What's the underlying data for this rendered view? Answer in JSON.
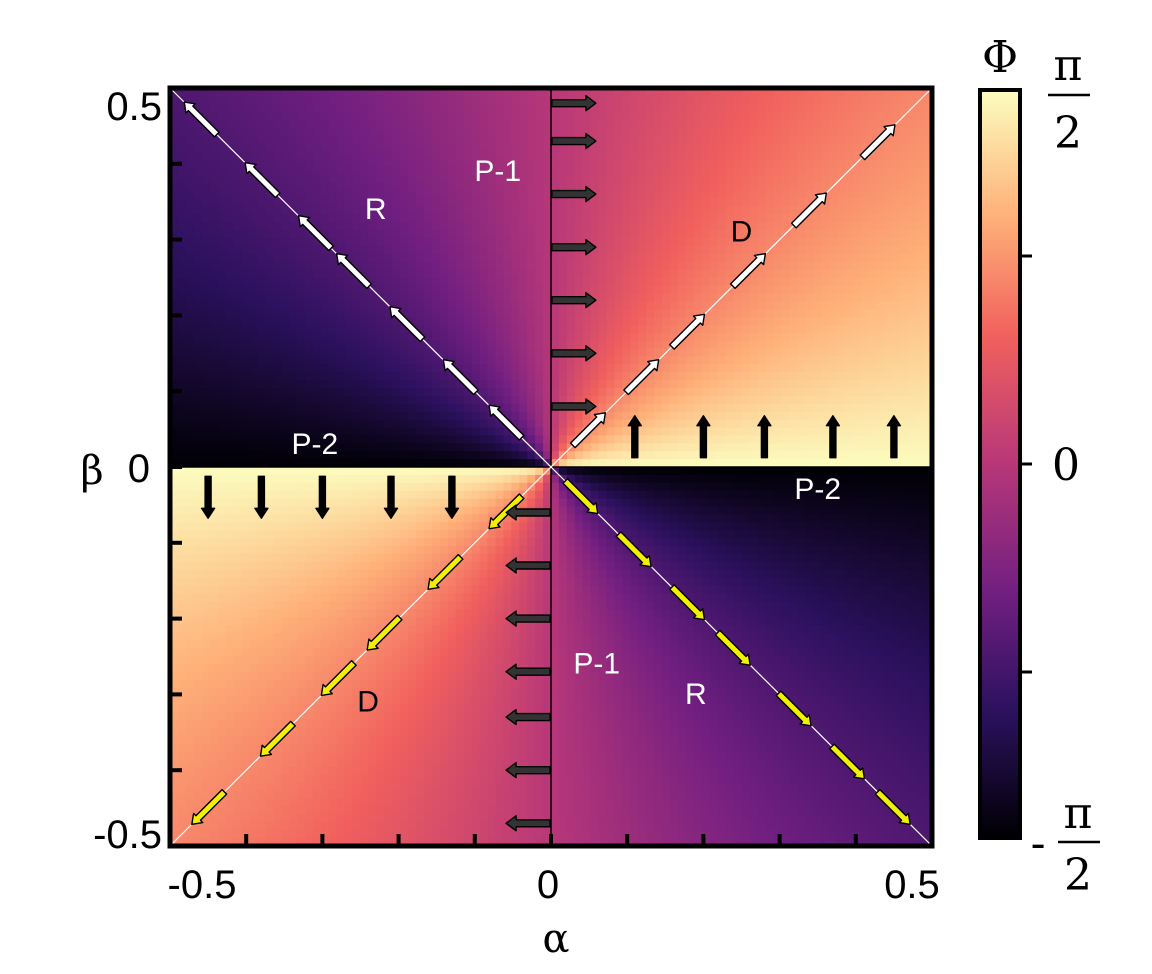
{
  "chart_data": {
    "type": "heatmap",
    "title": "",
    "xlabel": "α",
    "ylabel": "β",
    "xlim": [
      -0.5,
      0.5
    ],
    "ylim": [
      -0.5,
      0.5
    ],
    "x_tick_labels": [
      "-0.5",
      "0",
      "0.5"
    ],
    "y_tick_labels": [
      "0.5",
      "0",
      "-0.5"
    ],
    "colorbar": {
      "label": "Φ",
      "top_label": {
        "numerator": "π",
        "denominator": "2"
      },
      "middle_label": "0",
      "bottom_label": {
        "sign": "-",
        "numerator": "π",
        "denominator": "2"
      },
      "colormap": [
        "#000004",
        "#2c115f",
        "#721f81",
        "#b73779",
        "#f1605d",
        "#feb078",
        "#fcfdbf"
      ]
    },
    "regions": [
      {
        "label": "R",
        "alpha": -0.23,
        "beta": 0.34,
        "color": "#ffffff"
      },
      {
        "label": "P-1",
        "alpha": -0.07,
        "beta": 0.39,
        "color": "#ffffff"
      },
      {
        "label": "D",
        "alpha": 0.25,
        "beta": 0.31,
        "color": "#000000"
      },
      {
        "label": "P-2",
        "alpha": -0.31,
        "beta": 0.03,
        "color": "#ffffff"
      },
      {
        "label": "P-2",
        "alpha": 0.35,
        "beta": -0.03,
        "color": "#ffffff"
      },
      {
        "label": "P-1",
        "alpha": 0.06,
        "beta": -0.26,
        "color": "#ffffff"
      },
      {
        "label": "R",
        "alpha": 0.19,
        "beta": -0.3,
        "color": "#ffffff"
      },
      {
        "label": "D",
        "alpha": -0.24,
        "beta": -0.31,
        "color": "#000000"
      }
    ],
    "arrow_sets": [
      {
        "name": "top-right-diagonal",
        "positions": [
          0.05,
          0.12,
          0.18,
          0.26,
          0.34,
          0.43
        ],
        "direction": [
          1,
          1
        ],
        "fill": "#ffffff",
        "stroke": "#000000"
      },
      {
        "name": "top-left-diagonal",
        "positions": [
          -0.06,
          -0.12,
          -0.19,
          -0.26,
          -0.31,
          -0.38,
          -0.46
        ],
        "direction": [
          -1,
          1
        ],
        "fill": "#ffffff",
        "stroke": "#000000"
      },
      {
        "name": "bottom-left-diagonal",
        "positions": [
          -0.06,
          -0.14,
          -0.22,
          -0.28,
          -0.36,
          -0.45
        ],
        "direction": [
          -1,
          -1
        ],
        "fill": "#f2ef00",
        "stroke": "#000000"
      },
      {
        "name": "bottom-right-diagonal",
        "positions": [
          0.04,
          0.11,
          0.18,
          0.24,
          0.32,
          0.39,
          0.45
        ],
        "direction": [
          1,
          -1
        ],
        "fill": "#f2ef00",
        "stroke": "#000000"
      },
      {
        "name": "upper-right-horizontal",
        "positions": [
          0.48,
          0.43,
          0.36,
          0.29,
          0.22,
          0.15,
          0.08
        ],
        "direction": [
          1,
          0
        ],
        "fill": "#333333",
        "stroke": "#000000"
      },
      {
        "name": "lower-left-horizontal",
        "positions": [
          -0.06,
          -0.13,
          -0.2,
          -0.27,
          -0.33,
          -0.4,
          -0.47
        ],
        "direction": [
          -1,
          0
        ],
        "fill": "#333333",
        "stroke": "#000000"
      },
      {
        "name": "right-vertical",
        "positions": [
          0.11,
          0.2,
          0.28,
          0.37,
          0.45
        ],
        "direction": [
          0,
          1
        ],
        "fill": "#000000",
        "stroke": "#000000"
      },
      {
        "name": "left-vertical",
        "positions": [
          -0.45,
          -0.38,
          -0.3,
          -0.21,
          -0.13
        ],
        "direction": [
          0,
          -1
        ],
        "fill": "#000000",
        "stroke": "#000000"
      }
    ]
  }
}
